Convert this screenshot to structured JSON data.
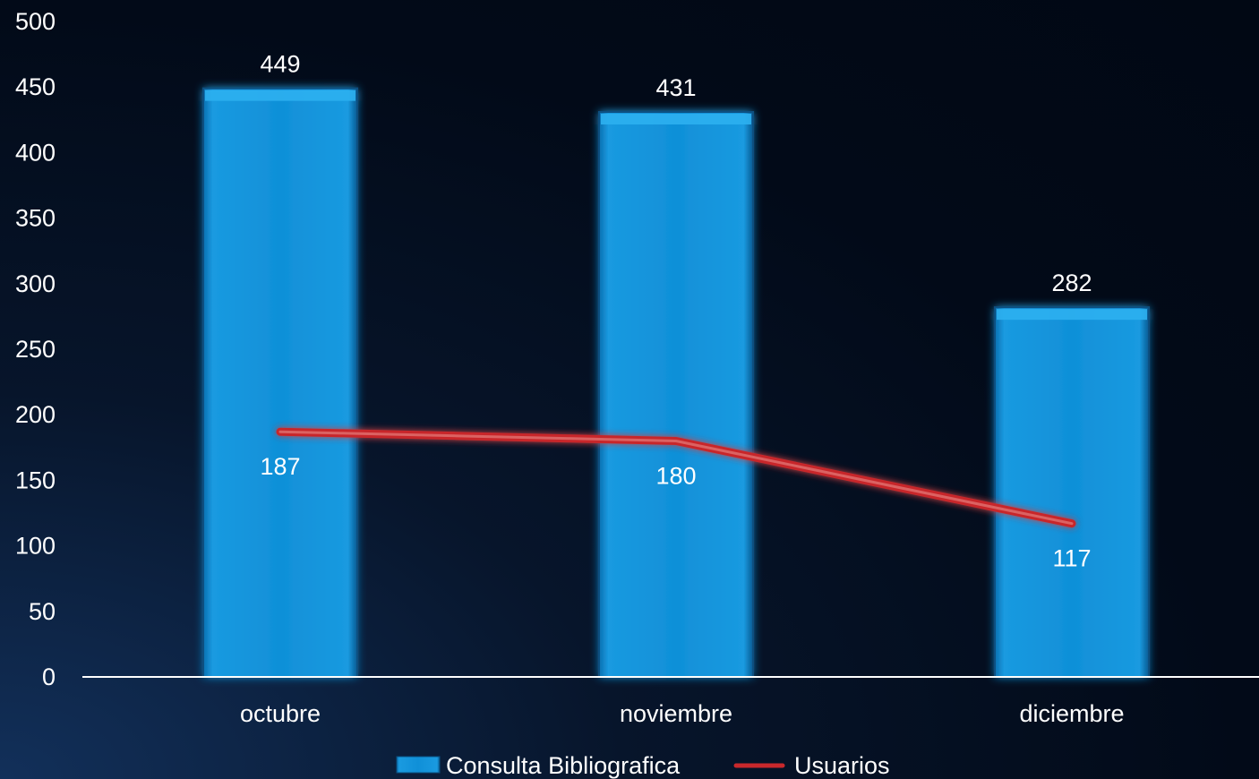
{
  "chart_data": {
    "type": "bar",
    "categories": [
      "octubre",
      "noviembre",
      "diciembre"
    ],
    "series": [
      {
        "name": "Consulta Bibliografica",
        "type": "bar",
        "values": [
          449,
          431,
          282
        ],
        "color": "#1090d8"
      },
      {
        "name": "Usuarios",
        "type": "line",
        "values": [
          187,
          180,
          117
        ],
        "color": "#c8282c"
      }
    ],
    "ylim": [
      0,
      500
    ],
    "yticks": [
      0,
      50,
      100,
      150,
      200,
      250,
      300,
      350,
      400,
      450,
      500
    ],
    "data_labels": true,
    "legend_position": "bottom",
    "grid": false
  }
}
